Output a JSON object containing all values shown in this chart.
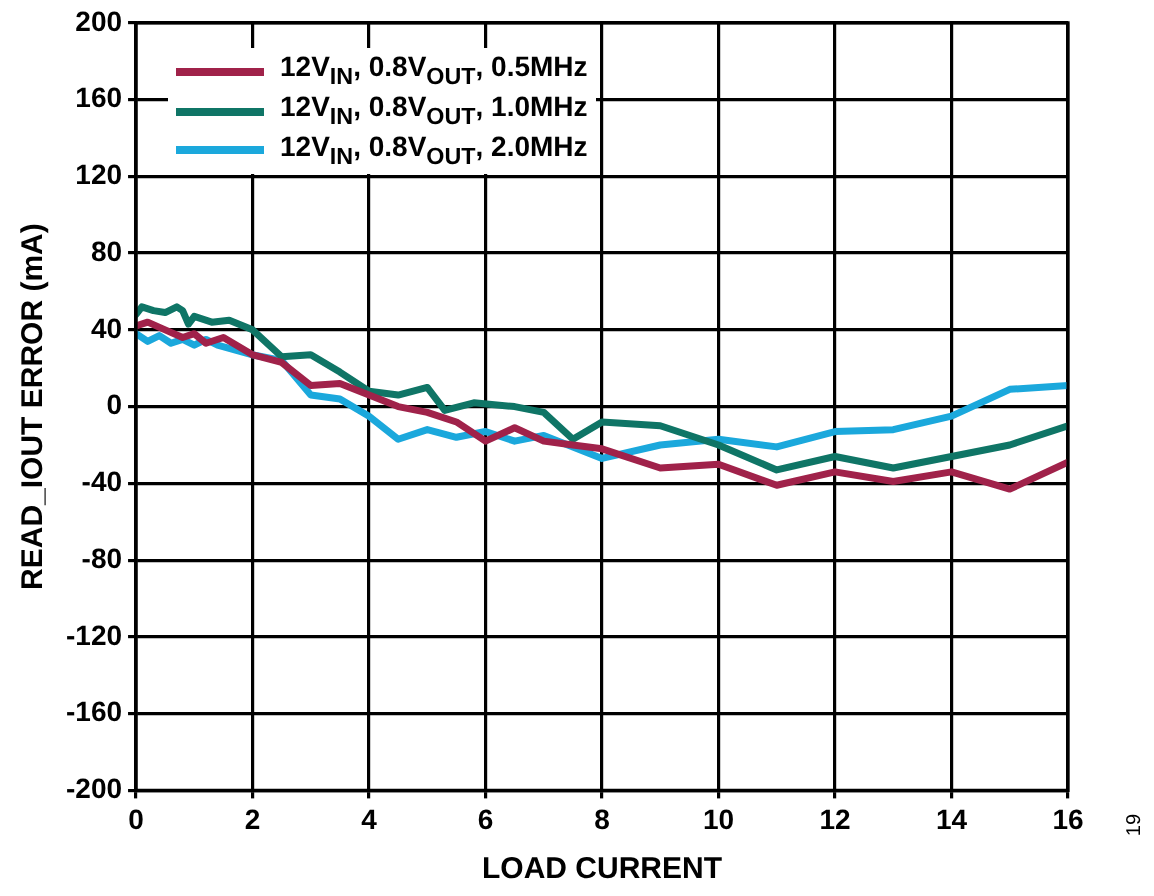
{
  "chart_data": {
    "type": "line",
    "xlabel": "LOAD CURRENT",
    "ylabel": "READ_IOUT ERROR (mA)",
    "xlim": [
      0,
      16
    ],
    "xticks": [
      0,
      2,
      4,
      6,
      8,
      10,
      12,
      14,
      16
    ],
    "ylim": [
      -200,
      200
    ],
    "yticks": [
      -200,
      -160,
      -120,
      -80,
      -40,
      0,
      40,
      80,
      120,
      160,
      200
    ],
    "grid": true,
    "legend": "top left",
    "line_style": "solid",
    "marker": "none",
    "annotations": [
      "19"
    ],
    "series": [
      {
        "name": "12V$_{IN}$, 0.8V$_{OUT}$, 0.5MHz",
        "color": "#a0224a",
        "x": [
          0,
          0.2,
          0.5,
          0.8,
          1,
          1.2,
          1.5,
          2,
          2.5,
          3,
          3.5,
          4,
          4.5,
          5,
          5.5,
          6,
          6.5,
          7,
          7.5,
          8,
          9,
          10,
          11,
          12,
          13,
          14,
          15,
          16
        ],
        "values": [
          42,
          44,
          40,
          36,
          38,
          33,
          36,
          27,
          23,
          11,
          12,
          6,
          0,
          -3,
          -8,
          -18,
          -11,
          -18,
          -20,
          -22,
          -32,
          -30,
          -41,
          -34,
          -39,
          -34,
          -43,
          -29
        ]
      },
      {
        "name": "12V$_{IN}$, 0.8V$_{OUT}$, 1.0MHz",
        "color": "#0f7566",
        "x": [
          0,
          0.1,
          0.3,
          0.5,
          0.7,
          0.8,
          0.9,
          1,
          1.3,
          1.6,
          2,
          2.5,
          3,
          3.5,
          4,
          4.5,
          5,
          5.3,
          5.8,
          6.5,
          7,
          7.5,
          8,
          9,
          10,
          11,
          12,
          13,
          14,
          15,
          16
        ],
        "values": [
          48,
          52,
          50,
          49,
          52,
          50,
          43,
          47,
          44,
          45,
          40,
          26,
          27,
          18,
          8,
          6,
          10,
          -2,
          2,
          0,
          -3,
          -17,
          -8,
          -10,
          -20,
          -33,
          -26,
          -32,
          -26,
          -20,
          -10
        ]
      },
      {
        "name": "12V$_{IN}$, 0.8V$_{OUT}$, 2.0MHz",
        "color": "#1ba8dc",
        "x": [
          0,
          0.2,
          0.4,
          0.6,
          0.8,
          1,
          1.2,
          1.4,
          2,
          2.5,
          3,
          3.5,
          4,
          4.5,
          5,
          5.5,
          6,
          6.5,
          7,
          8,
          9,
          10,
          11,
          12,
          13,
          14,
          15,
          16
        ],
        "values": [
          38,
          34,
          37,
          33,
          35,
          32,
          35,
          32,
          27,
          24,
          6,
          4,
          -5,
          -17,
          -12,
          -16,
          -13,
          -18,
          -15,
          -27,
          -20,
          -17,
          -21,
          -13,
          -12,
          -5,
          9,
          11
        ]
      }
    ]
  }
}
